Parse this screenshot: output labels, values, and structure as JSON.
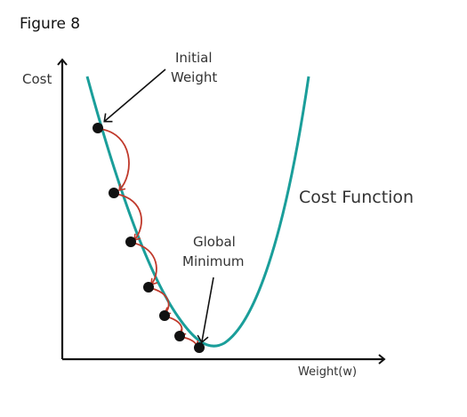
{
  "figure_label": "Figure 8",
  "axes": {
    "y_label": "Cost",
    "x_label": "Weight(w)"
  },
  "curve_label": "Cost Function",
  "annotations": {
    "initial_weight_line1": "Initial",
    "initial_weight_line2": "Weight",
    "global_minimum_line1": "Global",
    "global_minimum_line2": "Minimum"
  },
  "descent_steps": 7,
  "colors": {
    "curve": "#1a9e9a",
    "step_arrows": "#c0392b",
    "points": "#111111",
    "axes": "#111111"
  }
}
